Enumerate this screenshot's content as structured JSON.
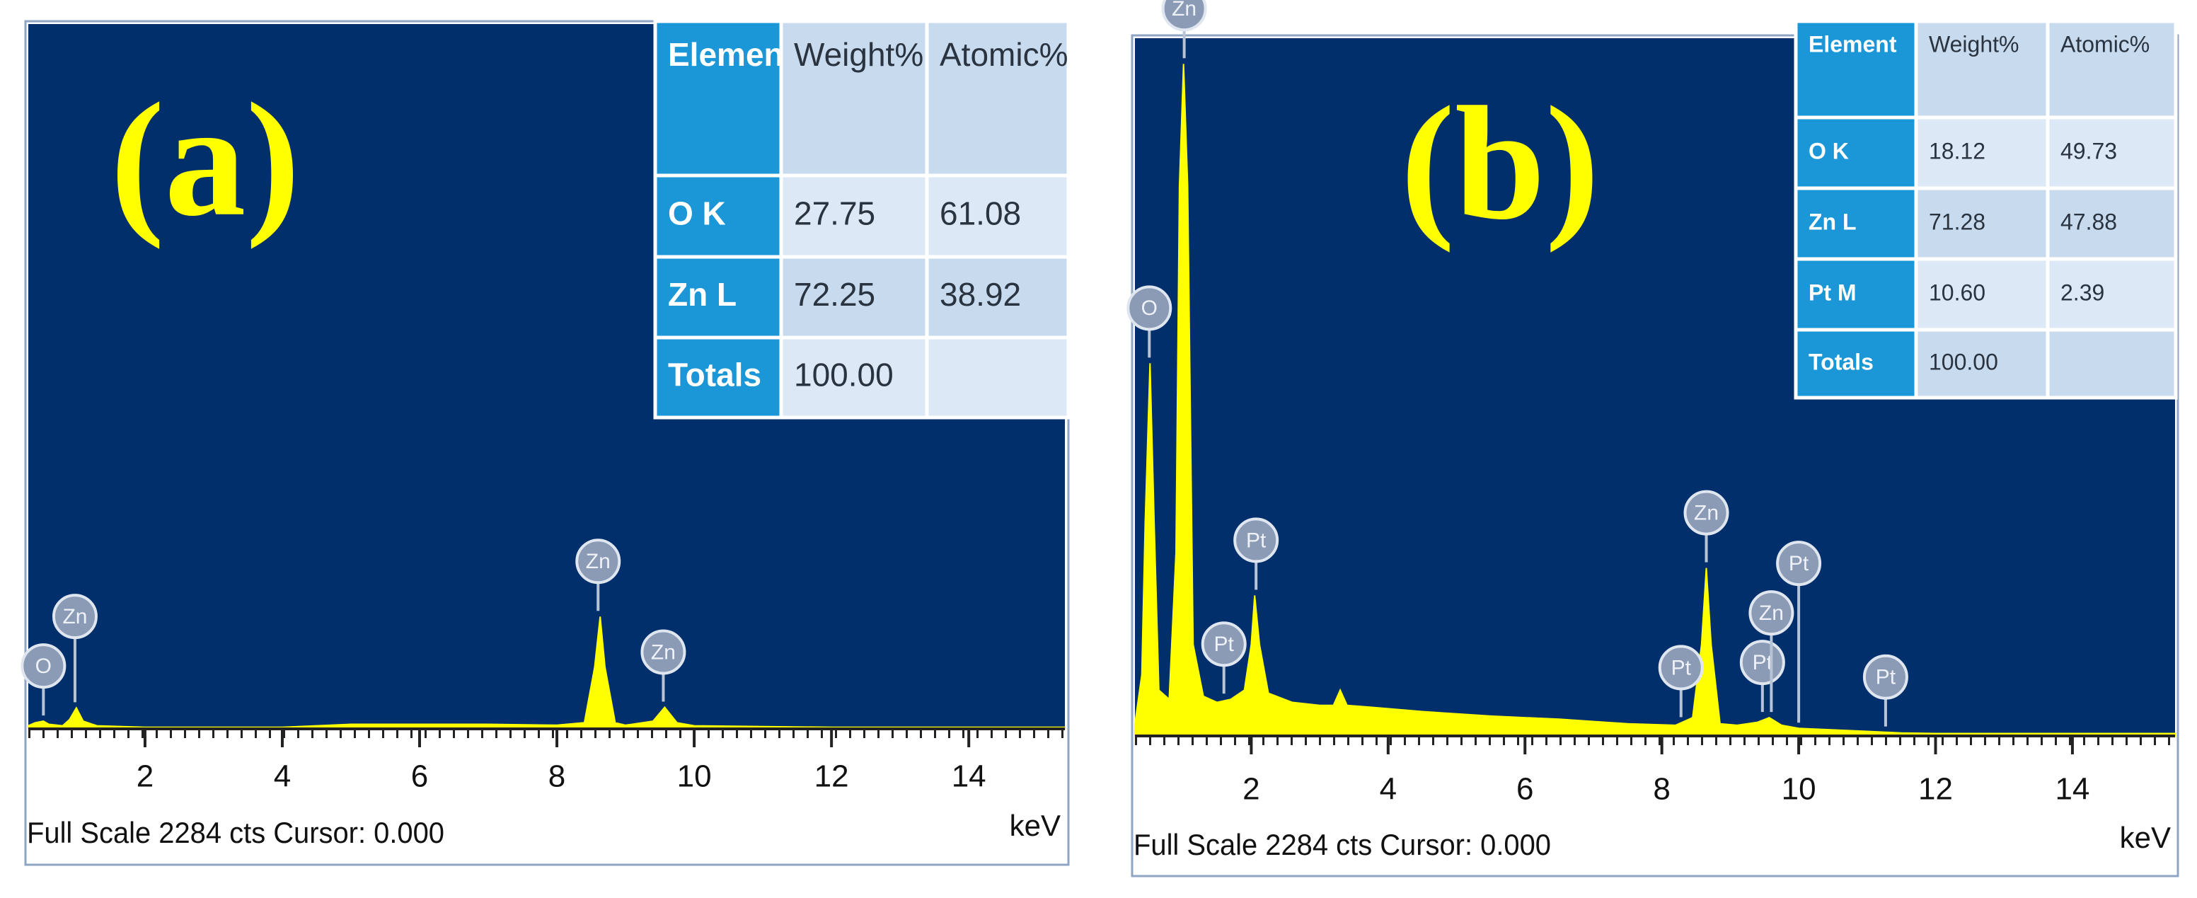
{
  "chart_data": [
    {
      "type": "area",
      "label": "(a)",
      "color": "#ffff00",
      "background": "#002f6c",
      "x": [
        0.3,
        0.4,
        0.52,
        0.6,
        0.8,
        0.9,
        1.0,
        1.1,
        1.3,
        2,
        3,
        4,
        4.5,
        5,
        6,
        7,
        8,
        8.4,
        8.55,
        8.63,
        8.7,
        8.85,
        9,
        9.4,
        9.57,
        9.75,
        10,
        12,
        14,
        15.4
      ],
      "values": [
        10,
        20,
        25,
        15,
        10,
        30,
        68,
        25,
        10,
        5,
        5,
        5,
        10,
        15,
        15,
        15,
        12,
        20,
        200,
        364,
        200,
        20,
        12,
        25,
        70,
        20,
        10,
        5,
        5,
        5
      ],
      "xlim": [
        0.3,
        15.4
      ],
      "ylim": [
        0,
        2284
      ],
      "xticks": [
        2,
        4,
        6,
        8,
        10,
        12,
        14
      ],
      "xlabel": "keV",
      "footer": "Full Scale 2284 cts Cursor: 0.000",
      "peak_labels": [
        {
          "text": "O",
          "x": 0.52
        },
        {
          "text": "Zn",
          "x": 0.98
        },
        {
          "text": "Zn",
          "x": 8.6
        },
        {
          "text": "Zn",
          "x": 9.55
        }
      ],
      "table": {
        "header": [
          "Element",
          "Weight%",
          "Atomic%"
        ],
        "rows": [
          [
            "O K",
            "27.75",
            "61.08"
          ],
          [
            "Zn L",
            "72.25",
            "38.92"
          ],
          [
            "Totals",
            "100.00",
            null
          ]
        ]
      }
    },
    {
      "type": "area",
      "label": "(b)",
      "color": "#ffff00",
      "background": "#002f6c",
      "x": [
        0.3,
        0.4,
        0.45,
        0.52,
        0.58,
        0.65,
        0.8,
        0.9,
        0.95,
        1.01,
        1.07,
        1.15,
        1.3,
        1.5,
        1.7,
        1.9,
        2.0,
        2.05,
        2.12,
        2.25,
        2.6,
        3.0,
        3.2,
        3.3,
        3.4,
        3.7,
        4.5,
        5.5,
        6.5,
        7.5,
        8.2,
        8.45,
        8.58,
        8.65,
        8.72,
        8.85,
        9.1,
        9.4,
        9.57,
        9.75,
        10,
        11,
        11.5,
        12,
        14,
        15.5
      ],
      "values": [
        40,
        200,
        700,
        1220,
        700,
        150,
        120,
        600,
        1800,
        2200,
        1800,
        300,
        130,
        110,
        120,
        150,
        300,
        460,
        300,
        140,
        110,
        100,
        100,
        150,
        100,
        95,
        80,
        65,
        55,
        40,
        35,
        60,
        300,
        550,
        300,
        40,
        35,
        45,
        60,
        35,
        25,
        15,
        10,
        8,
        8,
        8
      ],
      "xlim": [
        0.3,
        15.5
      ],
      "ylim": [
        0,
        2284
      ],
      "xticks": [
        2,
        4,
        6,
        8,
        10,
        12,
        14
      ],
      "xlabel": "keV",
      "footer": "Full Scale 2284 cts Cursor: 0.000",
      "peak_labels": [
        {
          "text": "O",
          "x": 0.51
        },
        {
          "text": "Zn",
          "x": 1.02
        },
        {
          "text": "Pt",
          "x": 1.6
        },
        {
          "text": "Pt",
          "x": 2.07
        },
        {
          "text": "Pt",
          "x": 8.28
        },
        {
          "text": "Zn",
          "x": 8.65
        },
        {
          "text": "Pt",
          "x": 9.47
        },
        {
          "text": "Zn",
          "x": 9.6
        },
        {
          "text": "Pt",
          "x": 10.0
        },
        {
          "text": "Pt",
          "x": 11.27
        }
      ],
      "table": {
        "header": [
          "Element",
          "Weight%",
          "Atomic%"
        ],
        "rows": [
          [
            "O K",
            "18.12",
            "49.73"
          ],
          [
            "Zn L",
            "71.28",
            "47.88"
          ],
          [
            "Pt M",
            "10.60",
            "2.39"
          ],
          [
            "Totals",
            "100.00",
            null
          ]
        ]
      }
    }
  ]
}
